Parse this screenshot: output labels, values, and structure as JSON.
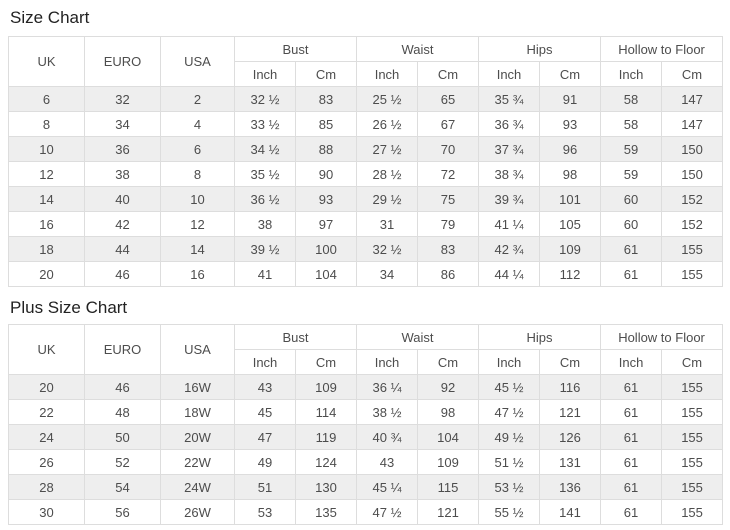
{
  "colors": {
    "stripe_row": "#eeeeee",
    "table_border": "#dddddd",
    "cell_text": "#4d4d4d",
    "title_text": "#222222",
    "background": "#ffffff"
  },
  "tables": [
    {
      "title": "Size Chart",
      "header": {
        "uk": "UK",
        "euro": "EURO",
        "usa": "USA",
        "groups": [
          "Bust",
          "Waist",
          "Hips",
          "Hollow to Floor"
        ],
        "inch": "Inch",
        "cm": "Cm"
      },
      "rows": [
        [
          "6",
          "32",
          "2",
          "32 ½",
          "83",
          "25 ½",
          "65",
          "35 ¾",
          "91",
          "58",
          "147"
        ],
        [
          "8",
          "34",
          "4",
          "33 ½",
          "85",
          "26 ½",
          "67",
          "36 ¾",
          "93",
          "58",
          "147"
        ],
        [
          "10",
          "36",
          "6",
          "34 ½",
          "88",
          "27 ½",
          "70",
          "37 ¾",
          "96",
          "59",
          "150"
        ],
        [
          "12",
          "38",
          "8",
          "35 ½",
          "90",
          "28 ½",
          "72",
          "38 ¾",
          "98",
          "59",
          "150"
        ],
        [
          "14",
          "40",
          "10",
          "36 ½",
          "93",
          "29 ½",
          "75",
          "39 ¾",
          "101",
          "60",
          "152"
        ],
        [
          "16",
          "42",
          "12",
          "38",
          "97",
          "31",
          "79",
          "41 ¼",
          "105",
          "60",
          "152"
        ],
        [
          "18",
          "44",
          "14",
          "39 ½",
          "100",
          "32 ½",
          "83",
          "42 ¾",
          "109",
          "61",
          "155"
        ],
        [
          "20",
          "46",
          "16",
          "41",
          "104",
          "34",
          "86",
          "44 ¼",
          "112",
          "61",
          "155"
        ]
      ]
    },
    {
      "title": "Plus Size Chart",
      "header": {
        "uk": "UK",
        "euro": "EURO",
        "usa": "USA",
        "groups": [
          "Bust",
          "Waist",
          "Hips",
          "Hollow to Floor"
        ],
        "inch": "Inch",
        "cm": "Cm"
      },
      "rows": [
        [
          "20",
          "46",
          "16W",
          "43",
          "109",
          "36 ¼",
          "92",
          "45 ½",
          "116",
          "61",
          "155"
        ],
        [
          "22",
          "48",
          "18W",
          "45",
          "114",
          "38 ½",
          "98",
          "47 ½",
          "121",
          "61",
          "155"
        ],
        [
          "24",
          "50",
          "20W",
          "47",
          "119",
          "40 ¾",
          "104",
          "49 ½",
          "126",
          "61",
          "155"
        ],
        [
          "26",
          "52",
          "22W",
          "49",
          "124",
          "43",
          "109",
          "51 ½",
          "131",
          "61",
          "155"
        ],
        [
          "28",
          "54",
          "24W",
          "51",
          "130",
          "45 ¼",
          "115",
          "53 ½",
          "136",
          "61",
          "155"
        ],
        [
          "30",
          "56",
          "26W",
          "53",
          "135",
          "47 ½",
          "121",
          "55 ½",
          "141",
          "61",
          "155"
        ]
      ]
    }
  ]
}
